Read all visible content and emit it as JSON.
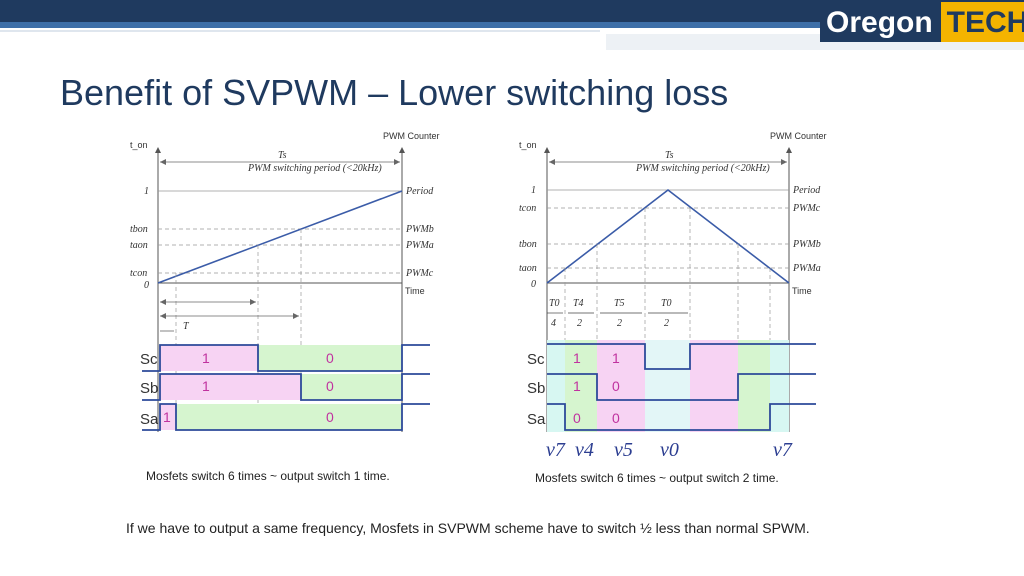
{
  "header": {
    "logo_word1": "Oregon",
    "logo_word2": "TECH"
  },
  "title": "Benefit of SVPWM – Lower switching loss",
  "left_diagram": {
    "axis_top_left": "t_on",
    "axis_top_right": "PWM Counter",
    "ts_label": "Ts",
    "period_note": "PWM switching period (<20kHz)",
    "y_labels": [
      "1",
      "tbon",
      "taon",
      "tcon",
      "0"
    ],
    "right_labels": [
      "Period",
      "PWMb",
      "PWMa",
      "PWMc",
      "Time"
    ],
    "t_label": "T",
    "signals": [
      "Sc",
      "Sb",
      "Sa"
    ],
    "sc_bits": [
      "1",
      "0"
    ],
    "sb_bits": [
      "1",
      "0"
    ],
    "sa_bits": [
      "1",
      "0"
    ],
    "caption": "Mosfets switch 6 times ~ output switch 1 time."
  },
  "right_diagram": {
    "axis_top_left": "t_on",
    "axis_top_right": "PWM Counter",
    "ts_label": "Ts",
    "period_note": "PWM switching period (<20kHz)",
    "y_labels": [
      "1",
      "tcon",
      "tbon",
      "taon",
      "0"
    ],
    "right_labels": [
      "Period",
      "PWMc",
      "PWMb",
      "PWMa",
      "Time"
    ],
    "fractions": [
      {
        "num": "T0",
        "den": "4"
      },
      {
        "num": "T4",
        "den": "2"
      },
      {
        "num": "T5",
        "den": "2"
      },
      {
        "num": "T0",
        "den": "2"
      }
    ],
    "signals": [
      "Sc",
      "Sb",
      "Sa"
    ],
    "sc_bits": [
      "1",
      "1"
    ],
    "sb_bits": [
      "1",
      "0"
    ],
    "sa_bits": [
      "0",
      "0"
    ],
    "vectors": [
      "v7",
      "v4",
      "v5",
      "v0",
      "v7"
    ],
    "caption": "Mosfets switch 6 times ~ output switch 2 time."
  },
  "conclusion": "If we have to output a same frequency, Mosfets in SVPWM scheme have to switch ½ less than normal SPWM."
}
